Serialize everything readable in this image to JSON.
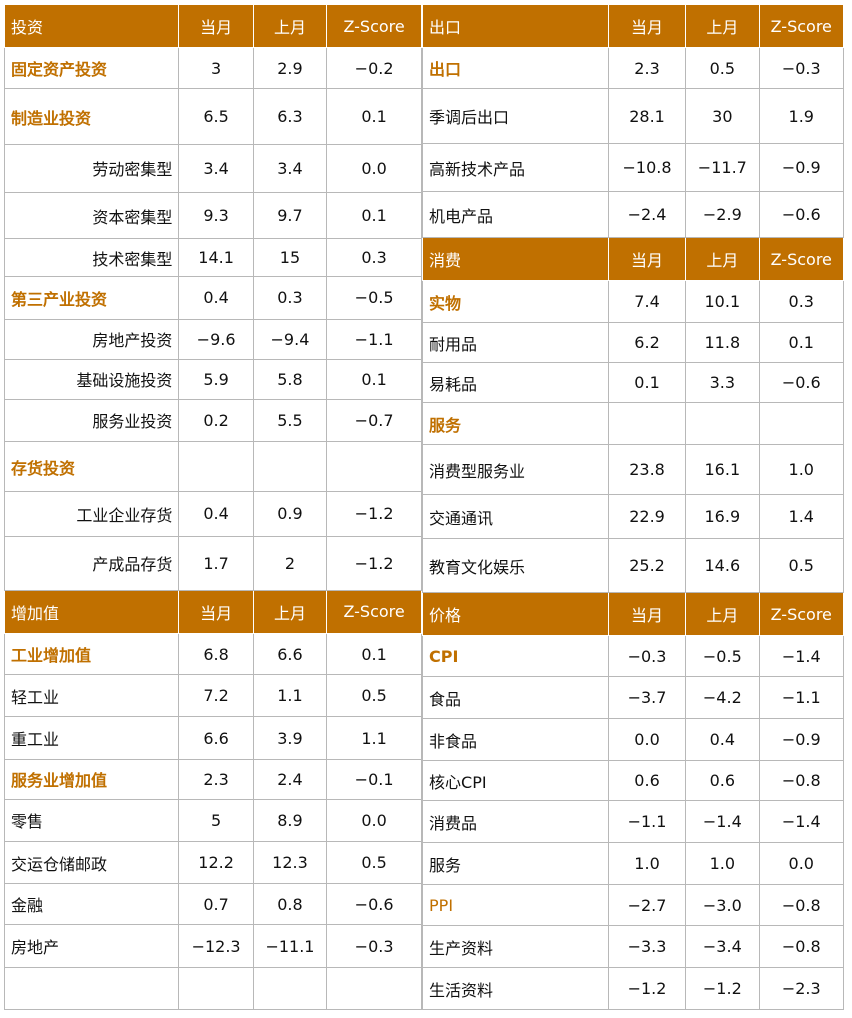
{
  "left": {
    "sections": [
      {
        "header": {
          "label": "投资",
          "c1": "当月",
          "c2": "上月",
          "c3": "Z-Score"
        },
        "rows": [
          {
            "label": "固定资产投资",
            "c1": "3",
            "c2": "2.9",
            "c3": "−0.2",
            "style": "bold",
            "h": 41
          },
          {
            "label": "制造业投资",
            "c1": "6.5",
            "c2": "6.3",
            "c3": "0.1",
            "style": "bold",
            "h": 55
          },
          {
            "label": "劳动密集型",
            "c1": "3.4",
            "c2": "3.4",
            "c3": "0.0",
            "style": "ind",
            "h": 48
          },
          {
            "label": "资本密集型",
            "c1": "9.3",
            "c2": "9.7",
            "c3": "0.1",
            "style": "ind",
            "h": 46
          },
          {
            "label": "技术密集型",
            "c1": "14.1",
            "c2": "15",
            "c3": "0.3",
            "style": "ind",
            "h": 38
          },
          {
            "label": "第三产业投资",
            "c1": "0.4",
            "c2": "0.3",
            "c3": "−0.5",
            "style": "bold",
            "h": 42
          },
          {
            "label": "房地产投资",
            "c1": "−9.6",
            "c2": "−9.4",
            "c3": "−1.1",
            "style": "ind",
            "h": 40
          },
          {
            "label": "基础设施投资",
            "c1": "5.9",
            "c2": "5.8",
            "c3": "0.1",
            "style": "ind",
            "h": 40
          },
          {
            "label": "服务业投资",
            "c1": "0.2",
            "c2": "5.5",
            "c3": "−0.7",
            "style": "ind",
            "h": 42
          },
          {
            "label": "存货投资",
            "c1": "",
            "c2": "",
            "c3": "",
            "style": "bold",
            "h": 50
          },
          {
            "label": "工业企业存货",
            "c1": "0.4",
            "c2": "0.9",
            "c3": "−1.2",
            "style": "ind",
            "h": 44
          },
          {
            "label": "产成品存货",
            "c1": "1.7",
            "c2": "2",
            "c3": "−1.2",
            "style": "ind",
            "h": 54
          }
        ]
      },
      {
        "header": {
          "label": "增加值",
          "c1": "当月",
          "c2": "上月",
          "c3": "Z-Score"
        },
        "rows": [
          {
            "label": "工业增加值",
            "c1": "6.8",
            "c2": "6.6",
            "c3": "0.1",
            "style": "bold",
            "h": 41
          },
          {
            "label": "轻工业",
            "c1": "7.2",
            "c2": "1.1",
            "c3": "0.5",
            "style": "plain",
            "h": 42
          },
          {
            "label": "重工业",
            "c1": "6.6",
            "c2": "3.9",
            "c3": "1.1",
            "style": "plain",
            "h": 42
          },
          {
            "label": "服务业增加值",
            "c1": "2.3",
            "c2": "2.4",
            "c3": "−0.1",
            "style": "bold",
            "h": 40
          },
          {
            "label": "零售",
            "c1": "5",
            "c2": "8.9",
            "c3": "0.0",
            "style": "plain",
            "h": 42
          },
          {
            "label": "交运仓储邮政",
            "c1": "12.2",
            "c2": "12.3",
            "c3": "0.5",
            "style": "plain",
            "h": 42
          },
          {
            "label": "金融",
            "c1": "0.7",
            "c2": "0.8",
            "c3": "−0.6",
            "style": "plain",
            "h": 41
          },
          {
            "label": "房地产",
            "c1": "−12.3",
            "c2": "−11.1",
            "c3": "−0.3",
            "style": "plain",
            "h": 42
          },
          {
            "label": "",
            "c1": "",
            "c2": "",
            "c3": "",
            "style": "plain",
            "h": 42
          }
        ]
      }
    ]
  },
  "right": {
    "sections": [
      {
        "header": {
          "label": "出口",
          "c1": "当月",
          "c2": "上月",
          "c3": "Z-Score"
        },
        "rows": [
          {
            "label": "出口",
            "c1": "2.3",
            "c2": "0.5",
            "c3": "−0.3",
            "style": "bold",
            "h": 41
          },
          {
            "label": "季调后出口",
            "c1": "28.1",
            "c2": "30",
            "c3": "1.9",
            "style": "plain",
            "h": 55
          },
          {
            "label": "高新技术产品",
            "c1": "−10.8",
            "c2": "−11.7",
            "c3": "−0.9",
            "style": "plain",
            "h": 48
          },
          {
            "label": "机电产品",
            "c1": "−2.4",
            "c2": "−2.9",
            "c3": "−0.6",
            "style": "plain",
            "h": 46
          }
        ]
      },
      {
        "header": {
          "label": "消费",
          "c1": "当月",
          "c2": "上月",
          "c3": "Z-Score"
        },
        "rows": [
          {
            "label": "实物",
            "c1": "7.4",
            "c2": "10.1",
            "c3": "0.3",
            "style": "bold",
            "h": 42
          },
          {
            "label": "耐用品",
            "c1": "6.2",
            "c2": "11.8",
            "c3": "0.1",
            "style": "plain",
            "h": 40
          },
          {
            "label": "易耗品",
            "c1": "0.1",
            "c2": "3.3",
            "c3": "−0.6",
            "style": "plain",
            "h": 40
          },
          {
            "label": "服务",
            "c1": "",
            "c2": "",
            "c3": "",
            "style": "bold",
            "h": 42
          },
          {
            "label": "消费型服务业",
            "c1": "23.8",
            "c2": "16.1",
            "c3": "1.0",
            "style": "plain",
            "h": 50
          },
          {
            "label": "交通通讯",
            "c1": "22.9",
            "c2": "16.9",
            "c3": "1.4",
            "style": "plain",
            "h": 44
          },
          {
            "label": "教育文化娱乐",
            "c1": "25.2",
            "c2": "14.6",
            "c3": "0.5",
            "style": "plain",
            "h": 54
          }
        ]
      },
      {
        "header": {
          "label": "价格",
          "c1": "当月",
          "c2": "上月",
          "c3": "Z-Score"
        },
        "rows": [
          {
            "label": "CPI",
            "c1": "−0.3",
            "c2": "−0.5",
            "c3": "−1.4",
            "style": "bold",
            "h": 41
          },
          {
            "label": "食品",
            "c1": "−3.7",
            "c2": "−4.2",
            "c3": "−1.1",
            "style": "plain",
            "h": 42
          },
          {
            "label": "非食品",
            "c1": "0.0",
            "c2": "0.4",
            "c3": "−0.9",
            "style": "plain",
            "h": 42
          },
          {
            "label": "核心CPI",
            "c1": "0.6",
            "c2": "0.6",
            "c3": "−0.8",
            "style": "plain",
            "h": 40
          },
          {
            "label": "消费品",
            "c1": "−1.1",
            "c2": "−1.4",
            "c3": "−1.4",
            "style": "plain",
            "h": 42
          },
          {
            "label": "服务",
            "c1": "1.0",
            "c2": "1.0",
            "c3": "0.0",
            "style": "plain",
            "h": 42
          },
          {
            "label": "PPI",
            "c1": "−2.7",
            "c2": "−3.0",
            "c3": "−0.8",
            "style": "orange",
            "h": 41
          },
          {
            "label": "生产资料",
            "c1": "−3.3",
            "c2": "−3.4",
            "c3": "−0.8",
            "style": "plain",
            "h": 42
          },
          {
            "label": "生活资料",
            "c1": "−1.2",
            "c2": "−1.2",
            "c3": "−2.3",
            "style": "plain",
            "h": 42
          }
        ]
      }
    ]
  }
}
